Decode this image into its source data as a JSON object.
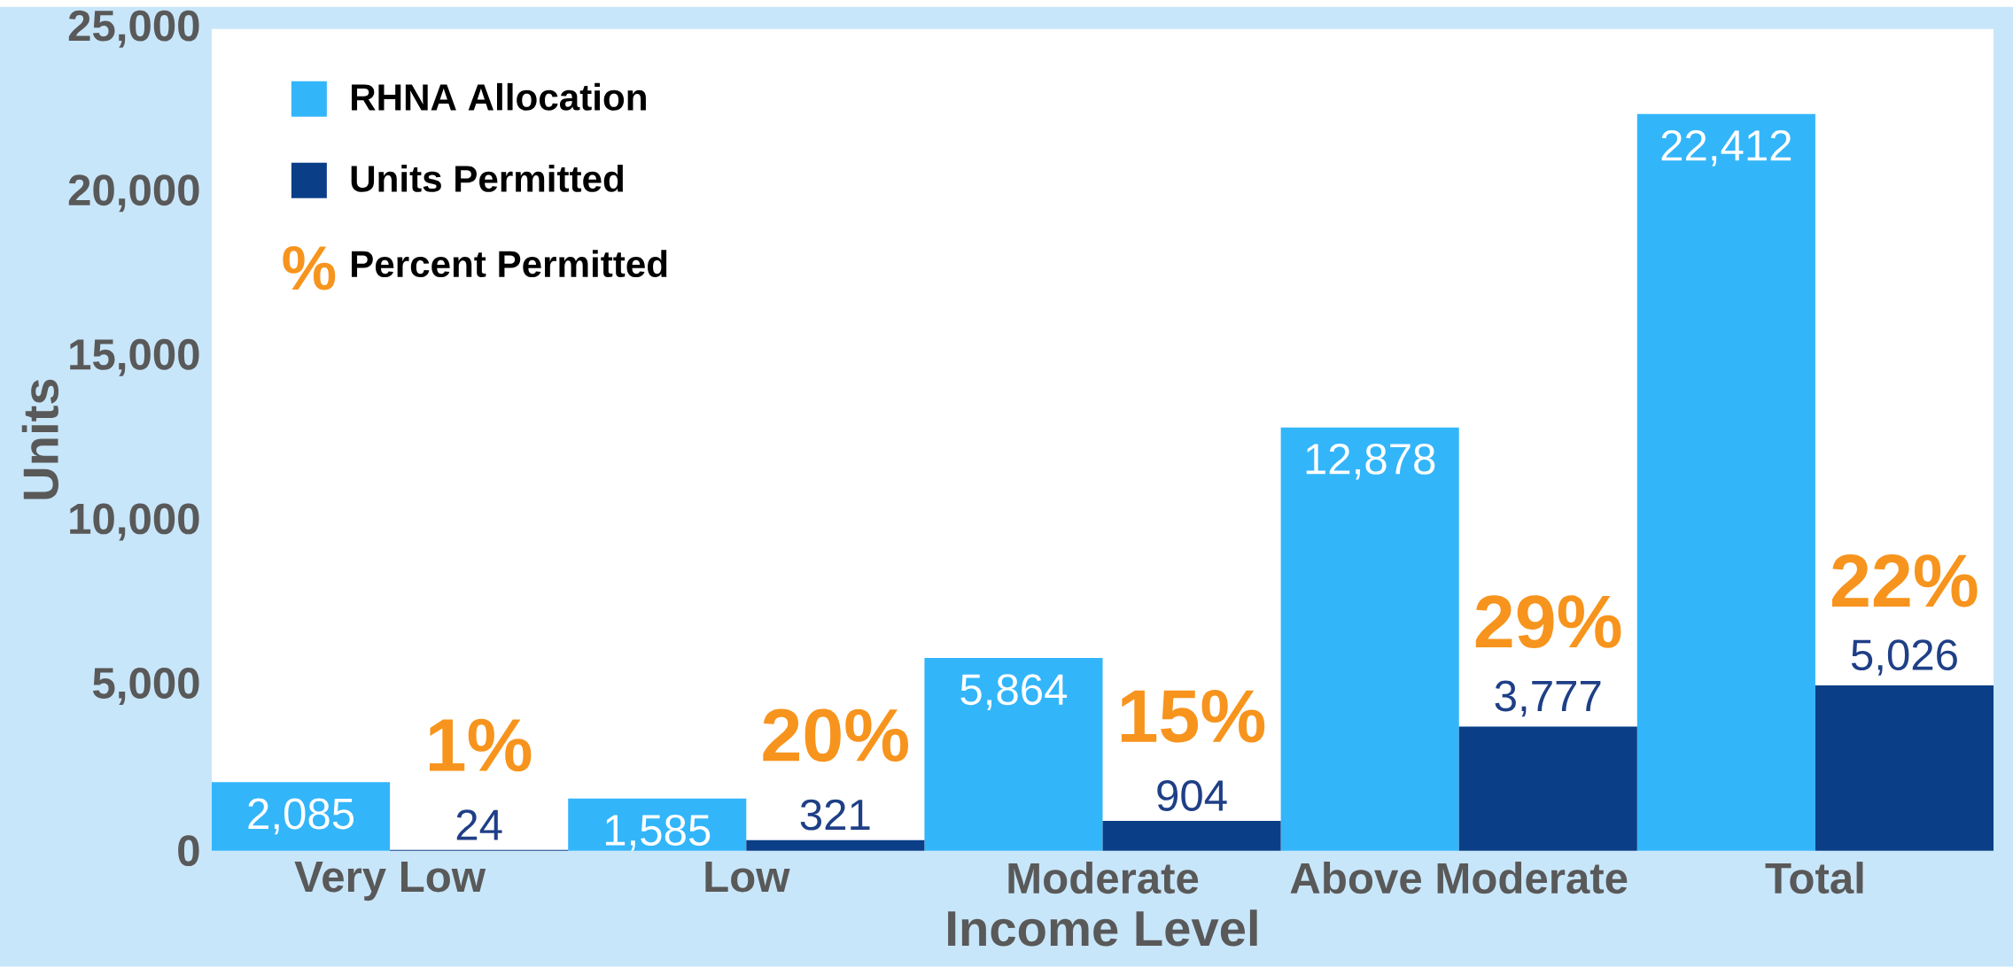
{
  "chart_data": {
    "type": "bar",
    "xlabel": "Income Level",
    "ylabel": "Units",
    "categories": [
      "Very Low",
      "Low",
      "Moderate",
      "Above Moderate",
      "Total"
    ],
    "series": [
      {
        "name": "RHNA  Allocation",
        "color": "#33b5fa",
        "values": [
          2085,
          1585,
          5864,
          12878,
          22412
        ],
        "value_labels": [
          "2,085",
          "1,585",
          "5,864",
          "12,878",
          "22,412"
        ]
      },
      {
        "name": "Units Permitted",
        "color": "#0a3f87",
        "values": [
          24,
          321,
          904,
          3777,
          5026
        ],
        "value_labels": [
          "24",
          "321",
          "904",
          "3,777",
          "5,026"
        ]
      }
    ],
    "ylim": [
      0,
      25000
    ],
    "yticks": [
      0,
      {
        "value": 5000,
        "label": "5,000"
      },
      {
        "value": 10000,
        "label": "10,000"
      },
      {
        "value": 15000,
        "label": "15,000"
      },
      {
        "value": 20000,
        "label": "20,000"
      },
      {
        "value": 25000,
        "label": "25,000"
      }
    ],
    "grid": false,
    "legend": "top left",
    "annotations": [
      "%",
      "Percent Permitted",
      "1%",
      "20%",
      "15%",
      "29%",
      "22%"
    ]
  }
}
